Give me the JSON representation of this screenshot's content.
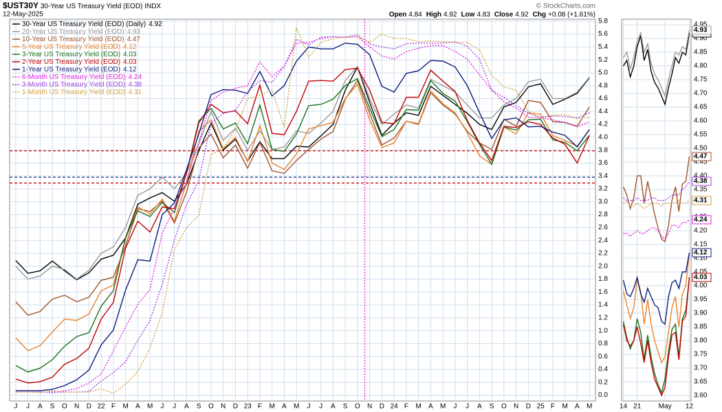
{
  "header": {
    "symbol": "$UST30Y",
    "description": "30-Year US Treasury Yield (EOD)",
    "exchange": "INDX",
    "date": "12-May-2025",
    "quote": [
      {
        "label": "Open",
        "value": "4.84"
      },
      {
        "label": "High",
        "value": "4.92"
      },
      {
        "label": "Low",
        "value": "4.83"
      },
      {
        "label": "Close",
        "value": "4.92"
      },
      {
        "label": "Chg",
        "value": "+0.08 (+1.61%)"
      }
    ],
    "watermark": "© StockCharts.com"
  },
  "chart_data": [
    {
      "type": "line",
      "grid": true,
      "categories": [
        "J",
        "J",
        "A",
        "S",
        "O",
        "N",
        "D",
        "22",
        "F",
        "M",
        "A",
        "M",
        "J",
        "J",
        "A",
        "S",
        "O",
        "N",
        "D",
        "23",
        "F",
        "M",
        "A",
        "M",
        "J",
        "J",
        "A",
        "S",
        "O",
        "N",
        "D",
        "24",
        "F",
        "M",
        "A",
        "M",
        "J",
        "J",
        "A",
        "S",
        "O",
        "N",
        "D",
        "25",
        "F",
        "M",
        "A",
        "M"
      ],
      "ylim": [
        -0.09,
        5.83
      ],
      "yticks": [
        {
          "value": 0,
          "label": "0.0"
        },
        0.2,
        0.4,
        0.6,
        0.8,
        {
          "value": 1,
          "label": "1.0"
        },
        1.2,
        1.4,
        1.6,
        1.8,
        {
          "value": 2,
          "label": "2.0"
        },
        2.2,
        2.4,
        2.6,
        2.8,
        {
          "value": 3,
          "label": "3.0"
        },
        3.2,
        3.4,
        3.6,
        3.8,
        {
          "value": 4,
          "label": "4.0"
        },
        4.2,
        4.4,
        4.6,
        4.8,
        {
          "value": 5,
          "label": "5.0"
        },
        5.2,
        5.4,
        5.6,
        5.8
      ],
      "hlines": [
        {
          "value": 3.79,
          "color": "#cc0000"
        },
        {
          "value": 3.38,
          "color": "#1a2a80"
        },
        {
          "value": 3.29,
          "color": "#cc0000"
        }
      ],
      "vline": {
        "x": 28.6,
        "color": "#e020e0"
      },
      "series": [
        {
          "name": "30-Year US Treasury Yield (EOD) (Daily)",
          "color": "#000000",
          "style": "solid",
          "values": [
            2.09,
            1.89,
            1.93,
            2.08,
            1.93,
            1.79,
            1.9,
            2.11,
            2.17,
            2.44,
            2.96,
            3.06,
            3.14,
            3.01,
            3.27,
            3.79,
            4.22,
            3.8,
            3.97,
            3.63,
            3.93,
            3.67,
            3.67,
            3.86,
            3.85,
            4.02,
            4.2,
            4.73,
            5.09,
            4.54,
            4.03,
            4.22,
            4.38,
            4.34,
            4.79,
            4.65,
            4.51,
            4.37,
            4.2,
            4.12,
            4.47,
            4.54,
            4.78,
            4.83,
            4.51,
            4.59,
            4.68,
            4.92
          ]
        },
        {
          "name": "20-Year US Treasury Yield (EOD)",
          "color": "#999999",
          "style": "solid",
          "values": [
            2.0,
            1.8,
            1.85,
            2.0,
            1.95,
            1.8,
            1.94,
            2.2,
            2.3,
            2.6,
            3.1,
            3.2,
            3.38,
            3.2,
            3.45,
            3.9,
            4.4,
            3.95,
            4.14,
            3.8,
            4.1,
            3.81,
            3.85,
            4.1,
            4.06,
            4.22,
            4.4,
            4.88,
            5.1,
            4.6,
            4.2,
            4.36,
            4.5,
            4.45,
            4.9,
            4.8,
            4.7,
            4.5,
            4.3,
            4.3,
            4.5,
            4.6,
            4.86,
            4.9,
            4.6,
            4.6,
            4.7,
            4.93
          ]
        },
        {
          "name": "10-Year US Treasury Yield (EOD)",
          "color": "#a0522d",
          "style": "solid",
          "values": [
            1.45,
            1.24,
            1.3,
            1.49,
            1.55,
            1.45,
            1.52,
            1.78,
            1.83,
            2.32,
            2.89,
            2.85,
            3.01,
            2.67,
            3.15,
            3.83,
            4.05,
            3.68,
            3.88,
            3.52,
            3.92,
            3.48,
            3.44,
            3.64,
            3.81,
            3.97,
            4.09,
            4.59,
            4.88,
            4.37,
            3.88,
            3.99,
            4.25,
            4.2,
            4.69,
            4.5,
            4.36,
            4.09,
            3.91,
            3.81,
            4.28,
            4.17,
            4.57,
            4.54,
            4.24,
            4.23,
            4.17,
            4.47
          ]
        },
        {
          "name": "5-Year US Treasury Yield (EOD)",
          "color": "#e8822a",
          "style": "solid",
          "values": [
            0.89,
            0.69,
            0.77,
            0.98,
            1.18,
            1.16,
            1.26,
            1.62,
            1.71,
            2.42,
            2.92,
            2.81,
            3.04,
            2.7,
            3.3,
            4.09,
            4.27,
            3.82,
            4.0,
            3.62,
            4.18,
            3.6,
            3.5,
            3.74,
            4.13,
            4.18,
            4.23,
            4.6,
            4.82,
            4.27,
            3.84,
            3.91,
            4.25,
            4.21,
            4.72,
            4.52,
            4.38,
            4.07,
            3.71,
            3.58,
            4.16,
            4.05,
            4.38,
            4.36,
            4.03,
            3.95,
            3.86,
            4.12
          ]
        },
        {
          "name": "3-Year US Treasury Yield (EOD)",
          "color": "#1a6e1a",
          "style": "solid",
          "values": [
            0.46,
            0.36,
            0.42,
            0.55,
            0.76,
            0.91,
            0.97,
            1.38,
            1.62,
            2.45,
            2.86,
            2.77,
            2.99,
            2.83,
            3.45,
            4.25,
            4.45,
            4.13,
            4.22,
            3.9,
            4.5,
            3.81,
            3.78,
            4.05,
            4.49,
            4.51,
            4.59,
            4.8,
            4.91,
            4.45,
            4.01,
            4.12,
            4.43,
            4.42,
            4.88,
            4.68,
            4.56,
            4.24,
            3.89,
            3.58,
            4.16,
            4.11,
            4.27,
            4.28,
            3.96,
            3.92,
            3.79,
            4.03
          ]
        },
        {
          "name": "2-Year US Treasury Yield (EOD)",
          "color": "#c00000",
          "style": "solid",
          "values": [
            0.25,
            0.19,
            0.21,
            0.28,
            0.48,
            0.57,
            0.73,
            1.18,
            1.44,
            2.28,
            2.7,
            2.53,
            2.92,
            2.89,
            3.45,
            4.22,
            4.51,
            4.38,
            4.41,
            4.21,
            4.81,
            4.06,
            4.04,
            4.4,
            4.87,
            4.88,
            4.87,
            5.05,
            5.07,
            4.73,
            4.23,
            4.21,
            4.62,
            4.62,
            5.04,
            4.87,
            4.71,
            4.26,
            3.91,
            3.64,
            4.17,
            4.15,
            4.24,
            4.2,
            3.99,
            3.89,
            3.6,
            4.03
          ]
        },
        {
          "name": "1-Year US Treasury Yield (EOD)",
          "color": "#0a1a7a",
          "style": "solid",
          "values": [
            0.07,
            0.07,
            0.07,
            0.09,
            0.15,
            0.24,
            0.39,
            0.78,
            1.01,
            1.63,
            2.1,
            2.08,
            2.8,
            2.98,
            3.5,
            4.05,
            4.66,
            4.74,
            4.73,
            4.68,
            5.02,
            4.64,
            4.8,
            5.18,
            5.4,
            5.37,
            5.37,
            5.46,
            5.44,
            5.28,
            4.79,
            4.7,
            4.99,
            5.03,
            5.19,
            5.18,
            5.09,
            4.8,
            4.38,
            3.98,
            4.27,
            4.3,
            4.16,
            4.17,
            4.08,
            4.03,
            3.85,
            4.12
          ]
        },
        {
          "name": "6-Month US Treasury Yield (EOD)",
          "color": "#e020e0",
          "style": "dotted",
          "values": [
            0.05,
            0.05,
            0.05,
            0.05,
            0.07,
            0.1,
            0.19,
            0.33,
            0.69,
            1.06,
            1.41,
            1.64,
            2.51,
            2.91,
            3.32,
            3.92,
            4.57,
            4.7,
            4.76,
            4.8,
            5.17,
            4.94,
            5.1,
            5.46,
            5.47,
            5.53,
            5.56,
            5.55,
            5.56,
            5.4,
            5.26,
            5.21,
            5.33,
            5.38,
            5.42,
            5.42,
            5.33,
            5.21,
            4.97,
            4.73,
            4.55,
            4.45,
            4.31,
            4.3,
            4.27,
            4.23,
            4.16,
            4.24
          ]
        },
        {
          "name": "3-Month US Treasury Yield (EOD)",
          "color": "#a040e0",
          "style": "dotted",
          "values": [
            0.05,
            0.05,
            0.05,
            0.04,
            0.05,
            0.05,
            0.06,
            0.22,
            0.35,
            0.52,
            0.85,
            1.16,
            1.72,
            2.41,
            2.96,
            3.33,
            4.22,
            4.37,
            4.42,
            4.7,
            4.88,
            4.85,
            5.1,
            5.52,
            5.43,
            5.55,
            5.56,
            5.55,
            5.59,
            5.45,
            5.4,
            5.37,
            5.45,
            5.46,
            5.46,
            5.46,
            5.48,
            5.41,
            5.21,
            4.73,
            4.62,
            4.49,
            4.37,
            4.31,
            4.33,
            4.32,
            4.3,
            4.38
          ]
        },
        {
          "name": "1-Month US Treasury Yield (EOD)",
          "color": "#d4a040",
          "style": "dotted",
          "values": [
            0.05,
            0.05,
            0.04,
            0.07,
            0.05,
            0.05,
            0.05,
            0.1,
            0.03,
            0.17,
            0.37,
            0.73,
            1.28,
            2.26,
            2.6,
            2.79,
            3.73,
            3.83,
            4.12,
            4.6,
            4.65,
            4.74,
            4.15,
            5.7,
            5.24,
            5.47,
            5.53,
            5.55,
            5.56,
            5.47,
            5.6,
            5.53,
            5.53,
            5.48,
            5.49,
            5.48,
            5.47,
            5.47,
            5.35,
            4.96,
            4.78,
            4.73,
            4.4,
            4.3,
            4.34,
            4.35,
            4.29,
            4.31
          ]
        }
      ]
    },
    {
      "type": "line",
      "grid": true,
      "categories": [
        "14",
        null,
        null,
        null,
        "21",
        null,
        null,
        null,
        null,
        null,
        null,
        null,
        "May",
        null,
        null,
        null,
        null,
        null,
        null,
        "12"
      ],
      "ylim": [
        3.58,
        4.97
      ],
      "yticks": [
        {
          "value": 3.6,
          "label": "3.60"
        },
        3.65,
        {
          "value": 3.7,
          "label": "3.70"
        },
        3.75,
        {
          "value": 3.8,
          "label": "3.80"
        },
        3.85,
        {
          "value": 3.9,
          "label": "3.90"
        },
        3.95,
        {
          "value": 4,
          "label": "4.00"
        },
        4.05,
        {
          "value": 4.1,
          "label": "4.10"
        },
        4.15,
        {
          "value": 4.2,
          "label": "4.20"
        },
        4.25,
        {
          "value": 4.3,
          "label": "4.30"
        },
        4.35,
        {
          "value": 4.4,
          "label": "4.40"
        },
        4.45,
        {
          "value": 4.5,
          "label": "4.50"
        },
        4.55,
        {
          "value": 4.6,
          "label": "4.60"
        },
        4.65,
        {
          "value": 4.7,
          "label": "4.70"
        },
        4.75,
        {
          "value": 4.8,
          "label": "4.80"
        },
        4.85,
        {
          "value": 4.9,
          "label": "4.90"
        },
        4.95
      ],
      "series": [
        {
          "color": "#000000",
          "style": "solid",
          "values": [
            4.8,
            4.82,
            4.76,
            4.8,
            4.87,
            4.91,
            4.82,
            4.86,
            4.78,
            4.74,
            4.72,
            4.69,
            4.66,
            4.72,
            4.77,
            4.83,
            4.81,
            4.85,
            4.84,
            4.92
          ]
        },
        {
          "color": "#999999",
          "style": "solid",
          "values": [
            4.83,
            4.85,
            4.79,
            4.83,
            4.89,
            4.92,
            4.85,
            4.88,
            4.81,
            4.77,
            4.75,
            4.72,
            4.69,
            4.75,
            4.8,
            4.85,
            4.84,
            4.87,
            4.86,
            4.93
          ]
        },
        {
          "color": "#a0522d",
          "style": "solid",
          "values": [
            4.36,
            4.33,
            4.28,
            4.32,
            4.4,
            4.4,
            4.3,
            4.38,
            4.32,
            4.26,
            4.21,
            4.17,
            4.16,
            4.22,
            4.31,
            4.36,
            4.27,
            4.37,
            4.38,
            4.47
          ]
        },
        {
          "color": "#e8822a",
          "style": "solid",
          "values": [
            3.98,
            3.93,
            3.88,
            3.92,
            4.02,
            3.98,
            3.86,
            3.95,
            3.86,
            3.8,
            3.76,
            3.72,
            3.74,
            3.83,
            3.92,
            3.96,
            3.85,
            3.97,
            4.0,
            4.12
          ]
        },
        {
          "color": "#1a6e1a",
          "style": "solid",
          "values": [
            3.87,
            3.81,
            3.77,
            3.8,
            3.88,
            3.83,
            3.73,
            3.82,
            3.74,
            3.68,
            3.64,
            3.61,
            3.66,
            3.76,
            3.84,
            3.86,
            3.74,
            3.88,
            3.91,
            4.03
          ]
        },
        {
          "color": "#c00000",
          "style": "solid",
          "values": [
            3.86,
            3.8,
            3.78,
            3.8,
            3.85,
            3.79,
            3.72,
            3.8,
            3.72,
            3.66,
            3.63,
            3.6,
            3.63,
            3.74,
            3.82,
            3.83,
            3.73,
            3.87,
            3.89,
            4.03
          ]
        },
        {
          "color": "#0a1a7a",
          "style": "solid",
          "values": [
            4.02,
            3.97,
            3.96,
            3.99,
            4.03,
            3.97,
            3.94,
            3.99,
            3.96,
            3.93,
            3.92,
            3.87,
            3.86,
            3.96,
            4.01,
            4.02,
            3.99,
            4.05,
            4.05,
            4.12
          ]
        },
        {
          "color": "#e020e0",
          "style": "dotted",
          "values": [
            4.19,
            4.19,
            4.18,
            4.19,
            4.2,
            4.19,
            4.19,
            4.2,
            4.21,
            4.21,
            4.2,
            4.18,
            4.17,
            4.19,
            4.22,
            4.22,
            4.21,
            4.23,
            4.23,
            4.24
          ]
        },
        {
          "color": "#a040e0",
          "style": "dotted",
          "values": [
            4.32,
            4.31,
            4.31,
            4.31,
            4.32,
            4.31,
            4.31,
            4.31,
            4.32,
            4.32,
            4.31,
            4.31,
            4.31,
            4.32,
            4.33,
            4.33,
            4.33,
            4.35,
            4.36,
            4.38
          ]
        },
        {
          "color": "#d4a040",
          "style": "dotted",
          "values": [
            4.3,
            4.31,
            4.29,
            4.29,
            4.3,
            4.29,
            4.28,
            4.29,
            4.3,
            4.3,
            4.3,
            4.29,
            4.3,
            4.3,
            4.3,
            4.3,
            4.31,
            4.3,
            4.3,
            4.31
          ]
        }
      ]
    }
  ]
}
